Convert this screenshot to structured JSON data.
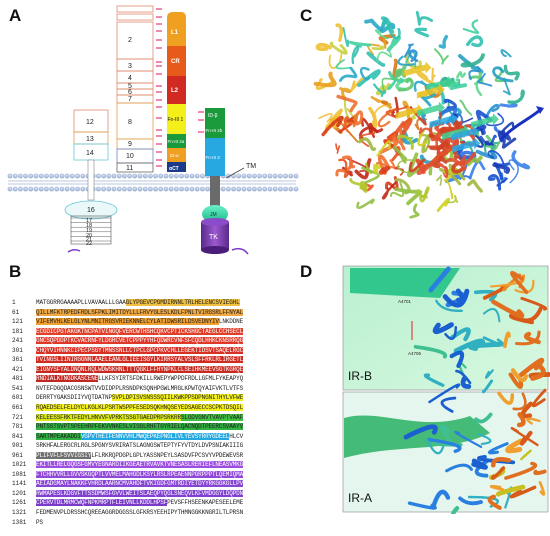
{
  "labels": {
    "a": "A",
    "b": "B",
    "c": "C",
    "d": "D"
  },
  "panel_a": {
    "alpha_left": [
      "2",
      "3",
      "4",
      "5",
      "6",
      "7",
      "8",
      "9",
      "10",
      "11"
    ],
    "alpha_side": [
      "12",
      "13",
      "14",
      "16"
    ],
    "stack_small": [
      "17",
      "18",
      "19",
      "20",
      "21",
      "22"
    ],
    "domains": {
      "l1": "L1",
      "cr": "CR",
      "l2": "L2",
      "fn1": "Fn-III 1",
      "fn2a": "Fn-III 2a",
      "id_a": "ID-α",
      "act": "αCT",
      "id_b": "ID-β",
      "fn2b": "Fn-III 2b",
      "fn3": "Fn-III 3",
      "jm": "JM",
      "tk": "TK"
    },
    "tm": "TM"
  },
  "panel_d": {
    "isoform_b": "IR-B",
    "isoform_a": "IR-A",
    "res1": "A4701",
    "res2": "A4706"
  },
  "sequence": [
    {
      "n": "1",
      "segs": [
        [
          "MATGGRRGAAAAPLLVAVAALLLGAA",
          ""
        ],
        [
          "GLYPGEVCPGMDIRNNLTRLHELENCSVIEGHL",
          "#f0c040"
        ]
      ]
    },
    {
      "n": "61",
      "segs": [
        [
          "QILLMFKTRPEDFRDLSFPKLIMITDYLLLFRVYGLESLKDLFPNLTVIRGSRLFFNYAL",
          "#f0a840"
        ]
      ]
    },
    {
      "n": "121",
      "segs": [
        [
          "VIFEMVHLKELGLYNLMNITRGSVRIEKNNELCYLATIDWSRILDSVEDNYIV",
          "#f0a030"
        ],
        [
          "LNKDDNE",
          "#ffffff"
        ]
      ]
    },
    {
      "n": "181",
      "segs": [
        [
          "ECGDICPGTAKGKTNCPATVINGQFVERCWTHSHCQKVCPTICKSHGCTAEGLCCHSECL",
          "#e0402a"
        ]
      ]
    },
    {
      "n": "241",
      "segs": [
        [
          "GNCSQPDDPTKCVACRNFYLDGRCVETCPPPYYHFQDWRCVNFSFCQDLHHKCKNSRRQG",
          "#e03828"
        ]
      ]
    },
    {
      "n": "301",
      "segs": [
        [
          "CHQYVIHNNKCIPECPSGYTMNSSNLLCTPCLGPCPKVCHLLEGEKTIDSVTSAQELRGC",
          "#d83024"
        ]
      ]
    },
    {
      "n": "361",
      "segs": [
        [
          "TVINGSLIINIRGGNNLAAELEANLGLIEEISGYLKIRRSYALVSLSFFRKLRLIRGETL",
          "#d02c22"
        ]
      ]
    },
    {
      "n": "421",
      "segs": [
        [
          "EIGNYSFYALDNQNLRQLWDWSKHNLTTTQGKLFFHYNPKLCLSEIHKMEEVSGTKGRQE",
          "#c82a20"
        ]
      ]
    },
    {
      "n": "481",
      "segs": [
        [
          "RNDIALKTNGDKASCENE",
          "#c02820"
        ],
        [
          "LLKFSYIRTSFDKILLRWEPYWPPDFRDLLGFMLFYKEAPYQ",
          "#ffffff"
        ]
      ]
    },
    {
      "n": "541",
      "segs": [
        [
          "NVTEFDGQDACGSNSWTVVDIDPPLRSNDPKSQNHPGWLMRGLKPWTQYAIFVKTLVTFS",
          "#ffffff"
        ]
      ]
    },
    {
      "n": "601",
      "segs": [
        [
          "DERRTYGAKSDIIYVQTDATNP",
          "#ffffff"
        ],
        [
          "SVPLDPISVSNSSSQIILKWKPPSDPNGNITHYLVFWE",
          "#f4f020"
        ]
      ]
    },
    {
      "n": "661",
      "segs": [
        [
          "RQAEDSELFELDYCLKGLKLPSRTWSPPFESEDSQKHNQSEYEDSAGECCSCPKTDSQIL",
          "#f4f020"
        ]
      ]
    },
    {
      "n": "721",
      "segs": [
        [
          "KELEESSFRKTFEDYLHNVVFVPRKTSSGTGAEDPRPSRKRR",
          "#d8e818"
        ],
        [
          "SLGDVGNVTVAVPTVAAF",
          "#40c040"
        ]
      ]
    },
    {
      "n": "781",
      "segs": [
        [
          "PNTSSTSVPTSPEEHRPFEKVVNKESLVISGLRHFTGYRIELQACNQDTPEERCSVAAYV",
          "#30b040"
        ]
      ]
    },
    {
      "n": "841",
      "segs": [
        [
          "SARTMPEAKADDI",
          "#30b040"
        ],
        [
          "VGPVTHEIFENNVVHLMWQEPKEPNGLIVLYEVSYRRYGDEEL",
          "#22a8e0"
        ],
        [
          "HLCV",
          "#ffffff"
        ]
      ]
    },
    {
      "n": "901",
      "segs": [
        [
          "SRKHFALERGCRLRGLSPGNYSVRIRATSLAGNGSWTEPTYFYVTDYLDVPSNIAKIIIG",
          "#ffffff"
        ]
      ]
    },
    {
      "n": "961",
      "segs": [
        [
          "PLIFVFLFSVVIGSIY",
          "#707070"
        ],
        [
          "LFLRKRQPDGPLGPLYASSNPEYLSASDVFPCSVYVPDEWEVSR",
          "#ffffff"
        ]
      ]
    },
    {
      "n": "1021",
      "segs": [
        [
          "EKITLLRELGQGSFGMVYEGNARDIIKGEAETRVAVKTVNESASLRERIEFLNEASVMKG",
          "#9b4ee0"
        ]
      ]
    },
    {
      "n": "1081",
      "segs": [
        [
          "FTCHHVVRLLGVVSKGQPTLVVMELMAHGDLKSYLRSLRPEAENNPGRPPPTLQEMIQMA",
          "#9048d8"
        ]
      ]
    },
    {
      "n": "1141",
      "segs": [
        [
          "AEIADGMAYLNAKKFVHRDLAARNCMVAHDFTVKIGDFGMTRDIYETDYYRKGGKGLLPV",
          "#8844d4"
        ]
      ]
    },
    {
      "n": "1201",
      "segs": [
        [
          "RWMAPESLKDGVFTTSSDMWSFGVVLWEITSLAEQPYQGLSNEQVLKFVMDGGYLDQPDN",
          "#8040d0"
        ]
      ]
    },
    {
      "n": "1261",
      "segs": [
        [
          "CPERVTDLMRMCWQFNPKMRPTFLEIVNLLKDDLHPSF",
          "#7a3cc8"
        ],
        [
          "PEVSFFHSEENKAPESEELEME",
          "#ffffff"
        ]
      ]
    },
    {
      "n": "1321",
      "segs": [
        [
          "FEDMENVPLDRSSHCQREEAGGRDGGSSLGFKRSYEEHIPYTHMNGGKKNGRILTLPRSN",
          "#ffffff"
        ]
      ]
    },
    {
      "n": "1381",
      "segs": [
        [
          "PS",
          "#ffffff"
        ]
      ]
    }
  ]
}
